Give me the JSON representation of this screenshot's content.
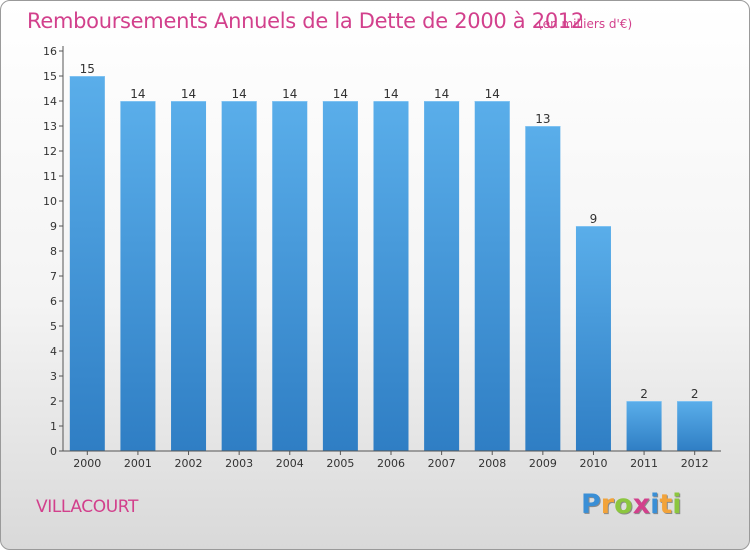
{
  "header": {
    "title": "Remboursements Annuels de la Dette de 2000 à 2012",
    "subtitle": "(en milliers d'€)"
  },
  "footer": {
    "commune": "VILLACOURT",
    "logo": "Proxiti",
    "logo_letters": [
      {
        "ch": "P",
        "color": "#3a8fd6"
      },
      {
        "ch": "r",
        "color": "#f2a33a"
      },
      {
        "ch": "o",
        "color": "#8cc63f"
      },
      {
        "ch": "x",
        "color": "#d2408c"
      },
      {
        "ch": "i",
        "color": "#3a8fd6"
      },
      {
        "ch": "t",
        "color": "#f2a33a"
      },
      {
        "ch": "i",
        "color": "#8cc63f"
      }
    ]
  },
  "chart_data": {
    "type": "bar",
    "title": "Remboursements Annuels de la Dette de 2000 à 2012",
    "subtitle": "(en milliers d'€)",
    "categories": [
      "2000",
      "2001",
      "2002",
      "2003",
      "2004",
      "2005",
      "2006",
      "2007",
      "2008",
      "2009",
      "2010",
      "2011",
      "2012"
    ],
    "values": [
      15,
      14,
      14,
      14,
      14,
      14,
      14,
      14,
      14,
      13,
      9,
      2,
      2
    ],
    "ylim": [
      0,
      16
    ],
    "yticks": [
      0,
      1,
      2,
      3,
      4,
      5,
      6,
      7,
      8,
      9,
      10,
      11,
      12,
      13,
      14,
      15,
      16
    ],
    "grid": false,
    "bar_color_top": "#5aaeea",
    "bar_color_bottom": "#2f7ec4"
  }
}
